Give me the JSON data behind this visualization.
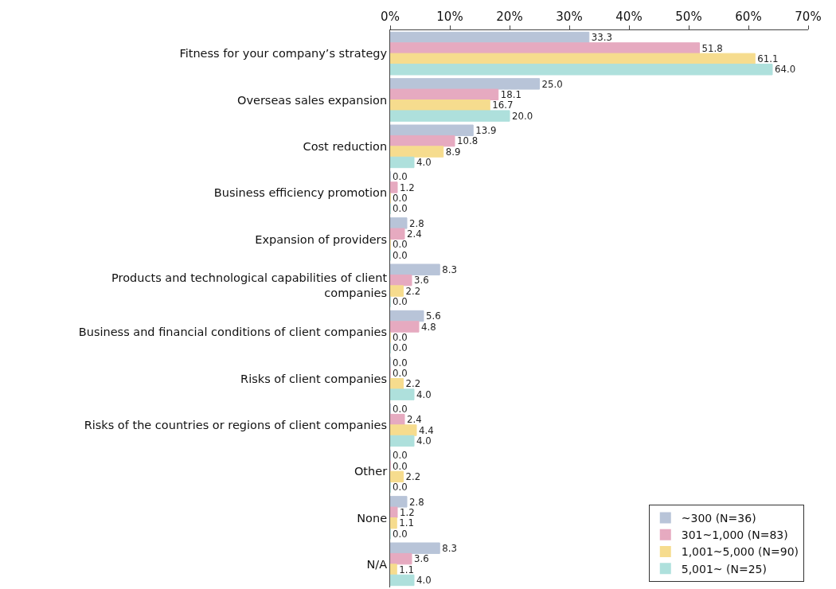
{
  "chart_data": {
    "type": "bar",
    "orientation": "horizontal",
    "categories": [
      "Fitness for your company’s strategy",
      "Overseas sales expansion",
      "Cost reduction",
      "Business efficiency promotion",
      "Expansion of providers",
      "Products and technological capabilities of client companies",
      "Business and financial conditions of client companies",
      "Risks of client companies",
      "Risks of the countries or regions of client companies",
      "Other",
      "None",
      "N/A"
    ],
    "series": [
      {
        "name": "~300 (N=36)",
        "color": "#b8c4d8",
        "values": [
          33.3,
          25.0,
          13.9,
          0.0,
          2.8,
          8.3,
          5.6,
          0.0,
          0.0,
          0.0,
          2.8,
          8.3
        ],
        "value_labels": [
          "33.3",
          "25.0",
          "13.9",
          "0.0",
          "2.8",
          "8.3",
          "5.6",
          "0.0",
          "0.0",
          "0.0",
          "2.8",
          "8.3"
        ]
      },
      {
        "name": "301~1,000 (N=83)",
        "color": "#e6aac0",
        "values": [
          51.8,
          18.1,
          10.8,
          1.2,
          2.4,
          3.6,
          4.8,
          0.0,
          2.4,
          0.0,
          1.2,
          3.6
        ],
        "value_labels": [
          "51.8",
          "18.1",
          "10.8",
          "1.2",
          "2.4",
          "3.6",
          "4.8",
          "0.0",
          "2.4",
          "0.0",
          "1.2",
          "3.6"
        ]
      },
      {
        "name": "1,001~5,000 (N=90)",
        "color": "#f6dc8e",
        "values": [
          61.1,
          16.7,
          8.9,
          0.0,
          0.0,
          2.2,
          0.0,
          2.2,
          4.4,
          2.2,
          1.1,
          1.1
        ],
        "value_labels": [
          "61.1",
          "16.7",
          "8.9",
          "0.0",
          "0.0",
          "2.2",
          "0.0",
          "2.2",
          "4.4",
          "2.2",
          "1.1",
          "1.1"
        ]
      },
      {
        "name": "5,001~ (N=25)",
        "color": "#aee0dc",
        "values": [
          64.0,
          20.0,
          4.0,
          0.0,
          0.0,
          0.0,
          0.0,
          4.0,
          4.0,
          0.0,
          0.0,
          4.0
        ],
        "value_labels": [
          "64.0",
          "20.0",
          "4.0",
          "0.0",
          "0.0",
          "0.0",
          "0.0",
          "4.0",
          "4.0",
          "0.0",
          "0.0",
          "4.0"
        ]
      }
    ],
    "xlim": [
      0,
      70
    ],
    "xticks": [
      {
        "value": 0,
        "label": "0%"
      },
      {
        "value": 10,
        "label": "10%"
      },
      {
        "value": 20,
        "label": "20%"
      },
      {
        "value": 30,
        "label": "30%"
      },
      {
        "value": 40,
        "label": "40%"
      },
      {
        "value": 50,
        "label": "50%"
      },
      {
        "value": 60,
        "label": "60%"
      },
      {
        "value": 70,
        "label": "70%"
      }
    ],
    "grid": false,
    "legend": "bottom right"
  }
}
